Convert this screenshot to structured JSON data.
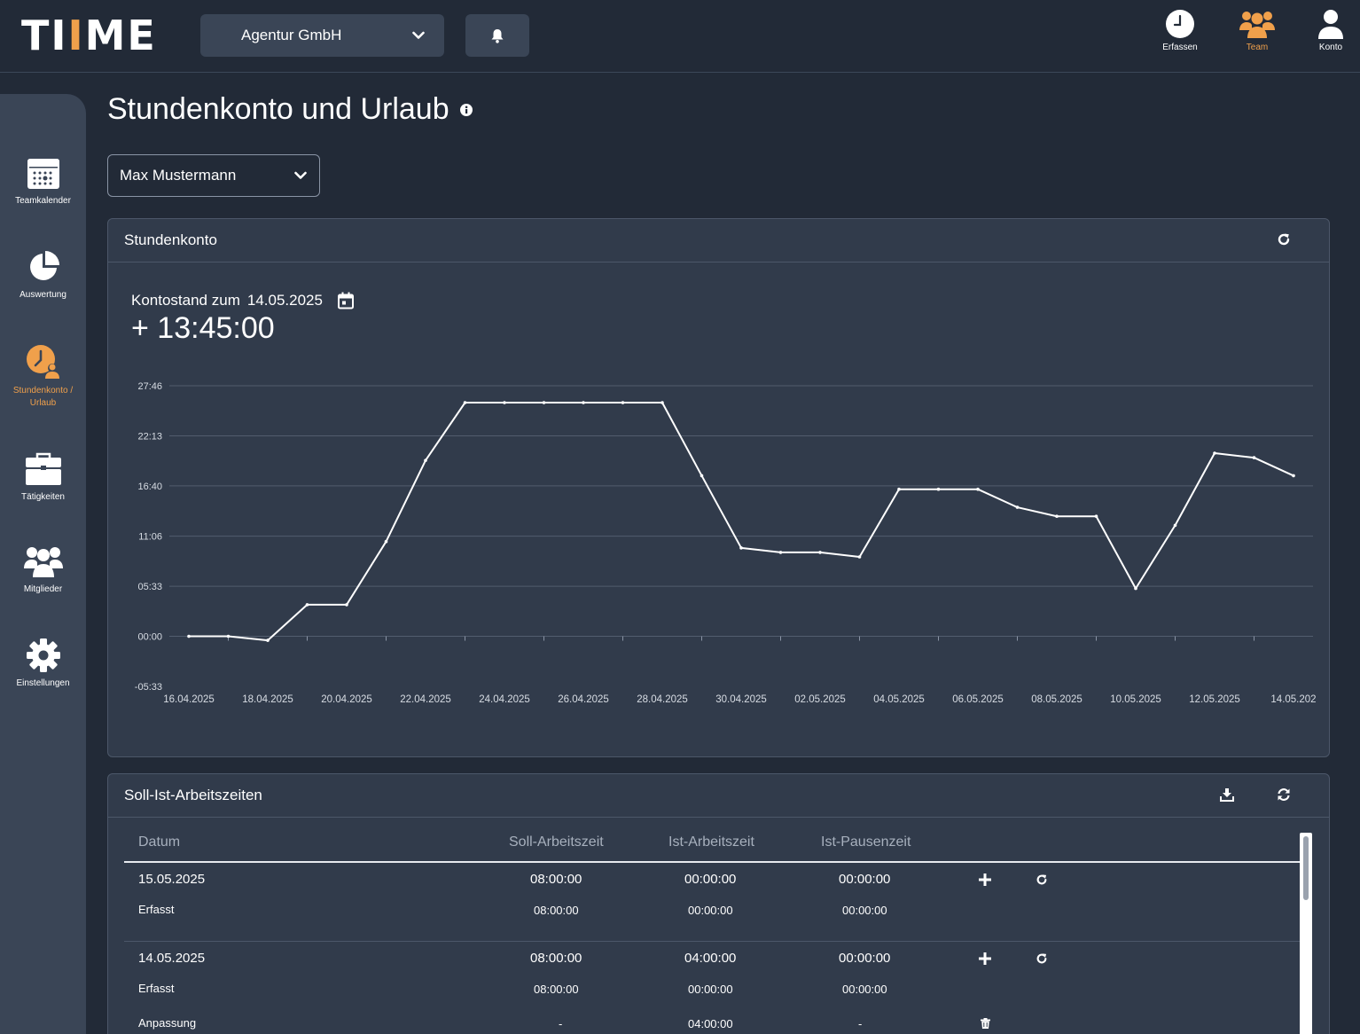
{
  "header": {
    "logo": {
      "pre": "TI",
      "accent": "I",
      "post": "ME"
    },
    "company": "Agentur GmbH",
    "nav": [
      {
        "label": "Erfassen",
        "icon": "clock-icon"
      },
      {
        "label": "Team",
        "icon": "team-icon",
        "active": true
      },
      {
        "label": "Konto",
        "icon": "user-icon"
      }
    ]
  },
  "sidebar": {
    "items": [
      {
        "label": "Teamkalender",
        "icon": "calendar-icon"
      },
      {
        "label": "Auswertung",
        "icon": "pie-chart-icon"
      },
      {
        "label": "Stundenkonto / Urlaub",
        "icon": "time-account-icon",
        "active": true
      },
      {
        "label": "Tätigkeiten",
        "icon": "briefcase-icon"
      },
      {
        "label": "Mitglieder",
        "icon": "members-icon"
      },
      {
        "label": "Einstellungen",
        "icon": "gear-icon"
      }
    ]
  },
  "page": {
    "title": "Stundenkonto und Urlaub",
    "user_select": "Max Mustermann"
  },
  "stundenkonto": {
    "title": "Stundenkonto",
    "kontostand_label": "Kontostand zum",
    "kontostand_date": "14.05.2025",
    "kontostand_value": "+ 13:45:00"
  },
  "chart_data": {
    "type": "line",
    "y_ticks": [
      "27:46",
      "22:13",
      "16:40",
      "11:06",
      "05:33",
      "00:00",
      "-05:33"
    ],
    "y_tick_values": [
      27.77,
      22.22,
      16.67,
      11.1,
      5.55,
      0,
      -5.55
    ],
    "ylim": [
      -5.55,
      27.77
    ],
    "x_tick_labels": [
      "16.04.2025",
      "18.04.2025",
      "20.04.2025",
      "22.04.2025",
      "24.04.2025",
      "26.04.2025",
      "28.04.2025",
      "30.04.2025",
      "02.05.2025",
      "04.05.2025",
      "06.05.2025",
      "08.05.2025",
      "10.05.2025",
      "12.05.2025",
      "14.05.202"
    ],
    "x": [
      "16.04.2025",
      "17.04.2025",
      "18.04.2025",
      "19.04.2025",
      "20.04.2025",
      "21.04.2025",
      "22.04.2025",
      "23.04.2025",
      "24.04.2025",
      "25.04.2025",
      "26.04.2025",
      "27.04.2025",
      "28.04.2025",
      "29.04.2025",
      "30.04.2025",
      "01.05.2025",
      "02.05.2025",
      "03.05.2025",
      "04.05.2025",
      "05.05.2025",
      "06.05.2025",
      "07.05.2025",
      "08.05.2025",
      "09.05.2025",
      "10.05.2025",
      "11.05.2025",
      "12.05.2025",
      "13.05.2025",
      "14.05.2025"
    ],
    "series": [
      {
        "values": [
          0,
          0,
          -0.45,
          3.5,
          3.5,
          10.5,
          19.5,
          25.9,
          25.9,
          25.9,
          25.9,
          25.9,
          25.9,
          17.8,
          9.8,
          9.3,
          9.3,
          8.8,
          16.3,
          16.3,
          16.3,
          14.3,
          13.3,
          13.3,
          5.3,
          12.3,
          20.3,
          19.8,
          17.8
        ]
      }
    ],
    "grid": true
  },
  "sollist": {
    "title": "Soll-Ist-Arbeitszeiten",
    "columns": [
      "Datum",
      "Soll-Arbeitszeit",
      "Ist-Arbeitszeit",
      "Ist-Pausenzeit"
    ],
    "rows": [
      {
        "date": "15.05.2025",
        "soll": "08:00:00",
        "ist": "00:00:00",
        "pause": "00:00:00",
        "subrows": [
          {
            "label": "Erfasst",
            "soll": "08:00:00",
            "ist": "00:00:00",
            "pause": "00:00:00"
          }
        ]
      },
      {
        "date": "14.05.2025",
        "soll": "08:00:00",
        "ist": "04:00:00",
        "pause": "00:00:00",
        "subrows": [
          {
            "label": "Erfasst",
            "soll": "08:00:00",
            "ist": "00:00:00",
            "pause": "00:00:00"
          },
          {
            "label": "Anpassung",
            "soll": "-",
            "ist": "04:00:00",
            "pause": "-"
          }
        ]
      }
    ]
  },
  "colors": {
    "background": "#222a37",
    "panel": "#313b4b",
    "sidebar": "#3a4556",
    "accent": "#f0a04b"
  }
}
